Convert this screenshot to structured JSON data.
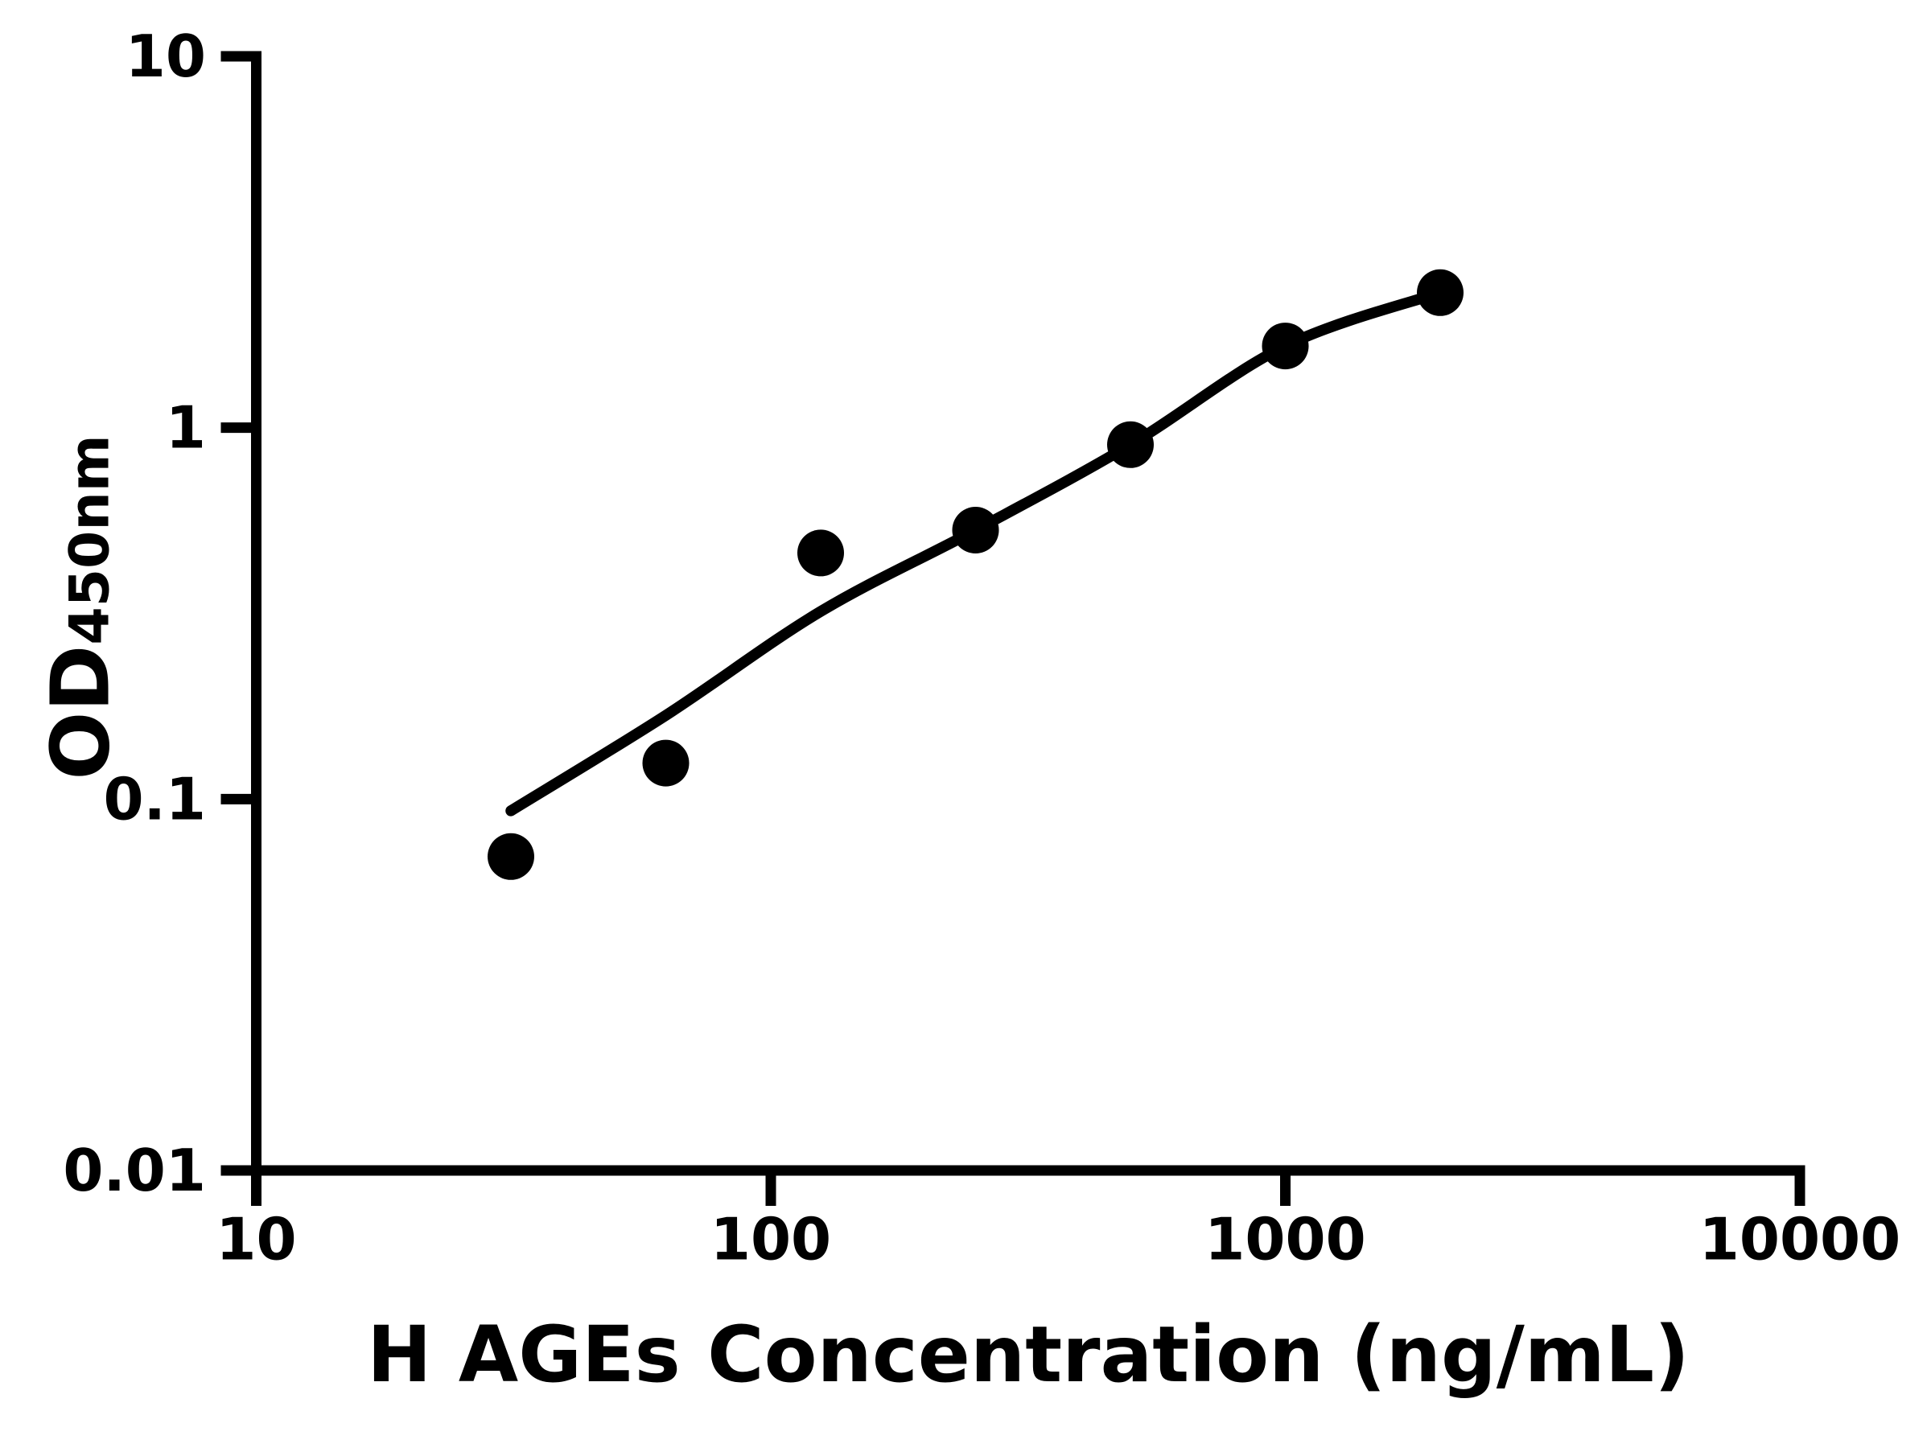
{
  "figure": {
    "background_color": "#ffffff",
    "foreground_color": "#000000"
  },
  "chart_data": {
    "type": "scatter",
    "title": "",
    "xlabel": "H AGEs Concentration (ng/mL)",
    "ylabel": {
      "main": "OD",
      "subscript": "450nm"
    },
    "x_scale": "log",
    "y_scale": "log",
    "xlim": [
      10,
      10000
    ],
    "ylim": [
      0.01,
      10
    ],
    "grid": false,
    "legend_position": "none",
    "x_ticks": [
      {
        "value": 10,
        "label": "10"
      },
      {
        "value": 100,
        "label": "100"
      },
      {
        "value": 1000,
        "label": "1000"
      },
      {
        "value": 10000,
        "label": "10000"
      }
    ],
    "y_ticks": [
      {
        "value": 10,
        "label": "10"
      },
      {
        "value": 1,
        "label": "1"
      },
      {
        "value": 0.1,
        "label": "0.1"
      },
      {
        "value": 0.01,
        "label": "0.01"
      }
    ],
    "series": [
      {
        "name": "standard-points",
        "type": "scatter",
        "marker": "filled-circle",
        "marker_color": "#000000",
        "points": [
          {
            "x": 31.25,
            "y": 0.07
          },
          {
            "x": 62.5,
            "y": 0.125
          },
          {
            "x": 125,
            "y": 0.46
          },
          {
            "x": 250,
            "y": 0.53
          },
          {
            "x": 500,
            "y": 0.9
          },
          {
            "x": 1000,
            "y": 1.66
          },
          {
            "x": 2000,
            "y": 2.31
          }
        ]
      },
      {
        "name": "fitted-curve",
        "type": "line",
        "line_color": "#000000",
        "points": [
          {
            "x": 31.25,
            "y": 0.093
          },
          {
            "x": 62.5,
            "y": 0.168
          },
          {
            "x": 125,
            "y": 0.32
          },
          {
            "x": 250,
            "y": 0.53
          },
          {
            "x": 500,
            "y": 0.9
          },
          {
            "x": 1000,
            "y": 1.66
          },
          {
            "x": 2000,
            "y": 2.31
          }
        ]
      }
    ]
  }
}
